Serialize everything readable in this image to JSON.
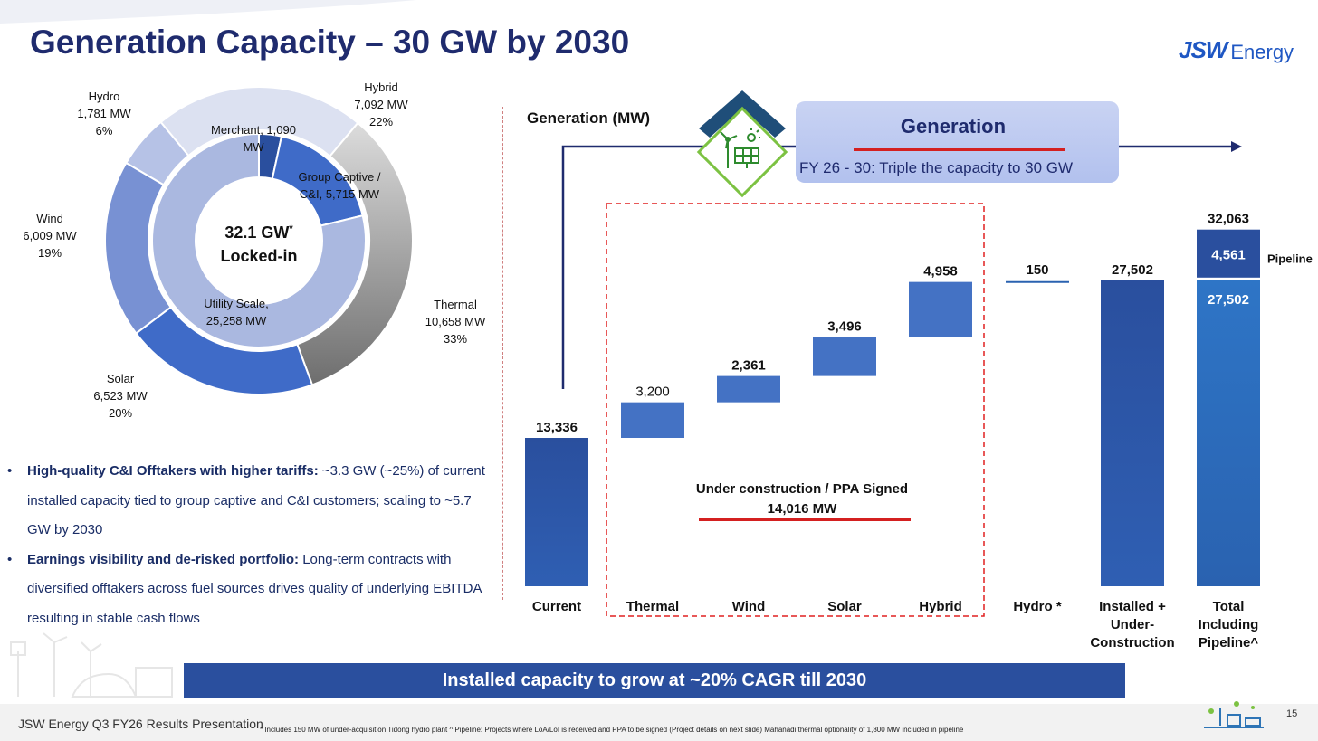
{
  "title": "Generation Capacity – 30 GW by 2030",
  "logo": {
    "mark": "JSW",
    "word": "Energy"
  },
  "donut": {
    "center_line1": "32.1 GW",
    "center_star": "*",
    "center_line2": "Locked-in",
    "outer_labels": {
      "hybrid": [
        "Hybrid",
        "7,092 MW",
        "22%"
      ],
      "thermal": [
        "Thermal",
        "10,658 MW",
        "33%"
      ],
      "solar": [
        "Solar",
        "6,523 MW",
        "20%"
      ],
      "wind": [
        "Wind",
        "6,009 MW",
        "19%"
      ],
      "hydro": [
        "Hydro",
        "1,781 MW",
        "6%"
      ]
    },
    "inner_labels": {
      "merchant": [
        "Merchant, 1,090",
        "MW"
      ],
      "group_captive": [
        "Group Captive /",
        "C&I, 5,715 MW"
      ],
      "utility": [
        "Utility Scale,",
        "25,258 MW"
      ]
    },
    "colors": {
      "hybrid": "#dce1f1",
      "thermal": "#8c8c8c",
      "solar": "#3f6bc8",
      "wind": "#7891d3",
      "hydro": "#b6c2e6",
      "merchant": "#2a4f9e",
      "group_captive": "#3f6bc8",
      "utility": "#aab8e0"
    }
  },
  "chart_data": [
    {
      "type": "pie",
      "title": "",
      "series": [
        {
          "name": "outer",
          "labels": [
            "Hybrid",
            "Thermal",
            "Solar",
            "Wind",
            "Hydro"
          ],
          "values": [
            7092,
            10658,
            6523,
            6009,
            1781
          ],
          "percent": [
            22,
            33,
            20,
            19,
            6
          ]
        },
        {
          "name": "inner",
          "labels": [
            "Merchant",
            "Group Captive / C&I",
            "Utility Scale"
          ],
          "values": [
            1090,
            5715,
            25258
          ]
        }
      ]
    },
    {
      "type": "bar",
      "subtype": "waterfall",
      "title": "Generation (MW)",
      "categories": [
        "Current",
        "Thermal",
        "Wind",
        "Solar",
        "Hybrid",
        "Hydro *",
        "Installed + Under-Construction",
        "Total Including Pipeline^"
      ],
      "values": [
        13336,
        3200,
        2361,
        3496,
        4958,
        150,
        27502,
        32063
      ],
      "value_labels": [
        "13,336",
        "3,200",
        "2,361",
        "3,496",
        "4,958",
        "150",
        "27,502",
        "32,063"
      ],
      "stacked_total": {
        "base": 27502,
        "pipeline": 4561,
        "base_label": "27,502",
        "pipeline_label": "4,561",
        "pipeline_name": "Pipeline"
      },
      "bracket": {
        "label_line1": "Under construction / PPA Signed",
        "label_line2": "14,016 MW",
        "categories": [
          "Thermal",
          "Wind",
          "Solar",
          "Hybrid"
        ]
      },
      "ylim": [
        0,
        32063
      ]
    }
  ],
  "waterfall_labels": {
    "y_title": "Generation (MW)",
    "categories": [
      [
        "Current"
      ],
      [
        "Thermal"
      ],
      [
        "Wind"
      ],
      [
        "Solar"
      ],
      [
        "Hybrid"
      ],
      [
        "Hydro *"
      ],
      [
        "Installed +",
        "Under-",
        "Construction"
      ],
      [
        "Total",
        "Including",
        "Pipeline^"
      ]
    ],
    "pipeline": "Pipeline",
    "bracket_line1": "Under construction / PPA Signed",
    "bracket_line2": "14,016 MW"
  },
  "generation_box": {
    "title": "Generation",
    "subtitle": "FY 26 - 30: Triple the capacity to 30 GW"
  },
  "bullets": [
    {
      "bold": "High-quality C&I Offtakers with higher tariffs:",
      "text": " ~3.3 GW (~25%) of current installed capacity tied to group captive and C&I customers; scaling to ~5.7 GW by 2030"
    },
    {
      "bold": "Earnings visibility and de-risked portfolio:",
      "text": " Long-term contracts with diversified offtakers across fuel sources drives quality of underlying EBITDA resulting in stable cash flows"
    }
  ],
  "banner": "Installed capacity to grow at ~20% CAGR till 2030",
  "footer": {
    "left": "JSW Energy Q3 FY26 Results Presentation",
    "note": "* Includes 150 MW of under-acquisition Tidong hydro plant ^ Pipeline: Projects where LoA/LoI is received and PPA to be signed  (Project details on next slide) Mahanadi thermal optionality of 1,800 MW included in pipeline",
    "page": "15"
  },
  "colors": {
    "navy": "#1f2b6e",
    "bar_dark": "#2a4f9e",
    "bar_mid": "#4472c4",
    "bar_light": "#2e75b6",
    "accent_red": "#d42020"
  }
}
